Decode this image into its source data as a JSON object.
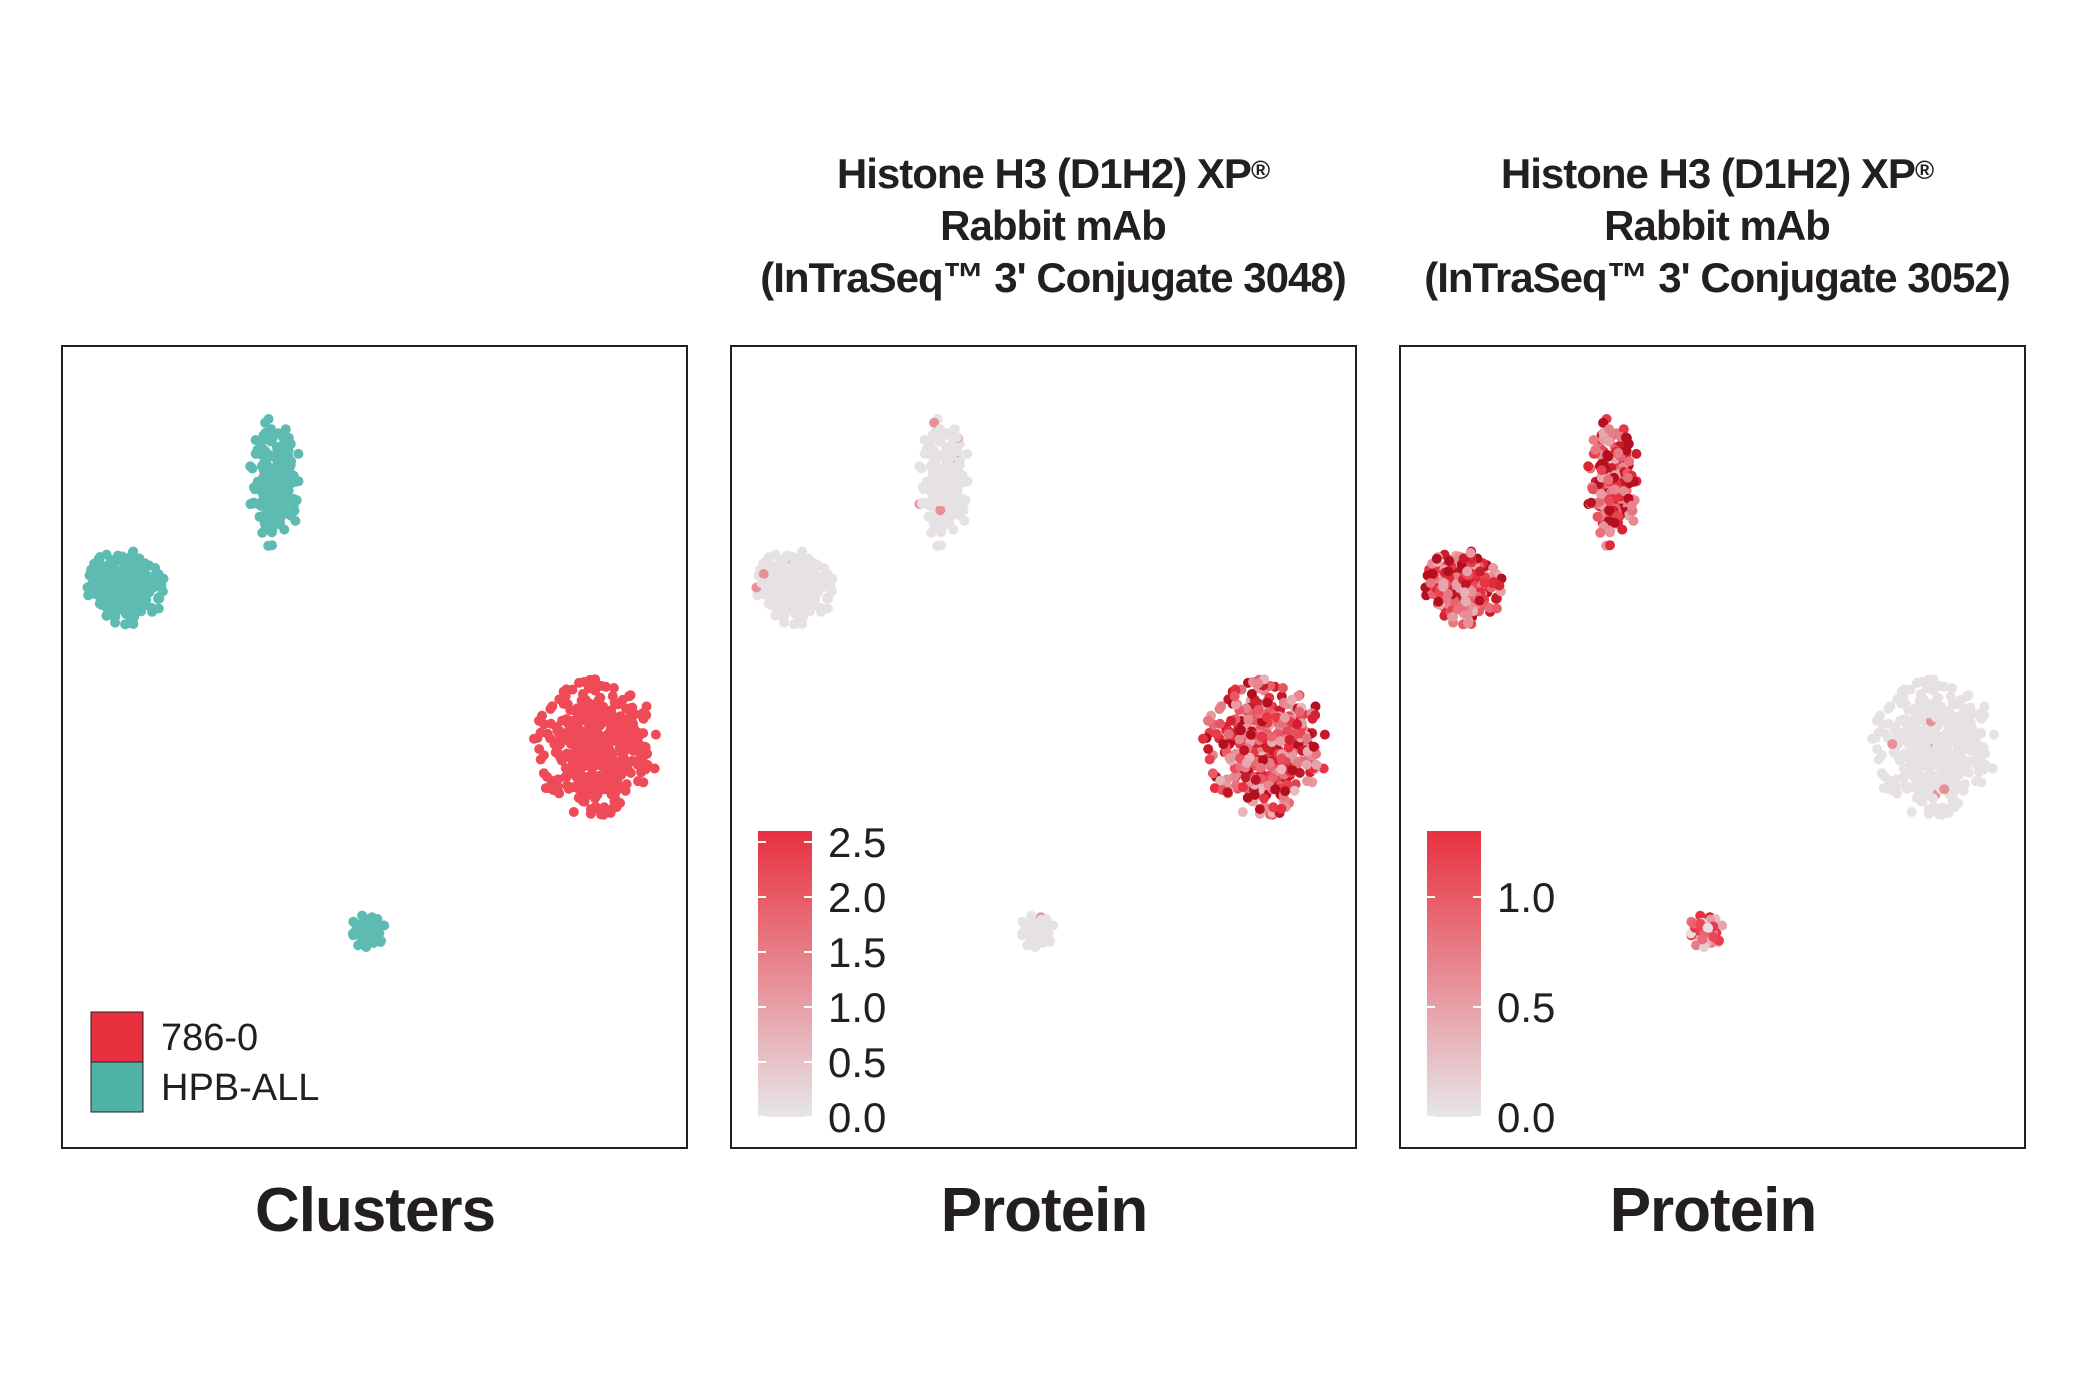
{
  "chart_data": [
    {
      "type": "scatter",
      "subtitle": "",
      "xlabel": "Clusters",
      "legend": {
        "placement": "bottom-left",
        "entries": [
          {
            "label": "786-0",
            "color": "#e8303f"
          },
          {
            "label": "HPB-ALL",
            "color": "#4fb3a6"
          }
        ]
      },
      "groups": [
        {
          "name": "786-0",
          "color": "#ef4a57",
          "cx": 0.855,
          "cy": 0.5,
          "spread_x": 0.095,
          "spread_y": 0.085,
          "n": 420
        },
        {
          "name": "HPB-ALL",
          "color": "#5dbbb1",
          "cx": 0.34,
          "cy": 0.17,
          "spread_x": 0.04,
          "spread_y": 0.08,
          "n": 190
        },
        {
          "name": "HPB-ALL",
          "color": "#5dbbb1",
          "cx": 0.1,
          "cy": 0.3,
          "spread_x": 0.065,
          "spread_y": 0.045,
          "n": 230
        },
        {
          "name": "HPB-ALL",
          "color": "#5dbbb1",
          "cx": 0.49,
          "cy": 0.73,
          "spread_x": 0.028,
          "spread_y": 0.022,
          "n": 60
        }
      ]
    },
    {
      "type": "scatter",
      "title_lines": [
        "Histone H3 (D1H2) XP",
        "Rabbit mAb",
        "(InTraSeq™ 3' Conjugate 3048)"
      ],
      "title_reg": "®",
      "xlabel": "Protein",
      "colorbar": {
        "ticks": [
          "2.5",
          "2.0",
          "1.5",
          "1.0",
          "0.5",
          "0.0"
        ],
        "min": 0.0,
        "max": 2.6,
        "low_color": "#e6e6e8",
        "high_color": "#e8303f",
        "placement": "bottom-left"
      },
      "groups": [
        {
          "cluster": "786-0",
          "cx": 0.855,
          "cy": 0.5,
          "spread_x": 0.095,
          "spread_y": 0.085,
          "n": 420,
          "mean_expression": 1.7
        },
        {
          "cluster": "HPB-ALL",
          "cx": 0.34,
          "cy": 0.17,
          "spread_x": 0.04,
          "spread_y": 0.08,
          "n": 190,
          "mean_expression": 0.1
        },
        {
          "cluster": "HPB-ALL",
          "cx": 0.1,
          "cy": 0.3,
          "spread_x": 0.065,
          "spread_y": 0.045,
          "n": 230,
          "mean_expression": 0.1
        },
        {
          "cluster": "HPB-ALL",
          "cx": 0.49,
          "cy": 0.73,
          "spread_x": 0.028,
          "spread_y": 0.022,
          "n": 60,
          "mean_expression": 0.05
        }
      ]
    },
    {
      "type": "scatter",
      "title_lines": [
        "Histone H3 (D1H2) XP",
        "Rabbit mAb",
        "(InTraSeq™ 3' Conjugate 3052)"
      ],
      "title_reg": "®",
      "xlabel": "Protein",
      "colorbar": {
        "ticks": [
          "1.0",
          "0.5",
          "0.0"
        ],
        "min": 0.0,
        "max": 1.3,
        "low_color": "#e6e6e8",
        "high_color": "#e8303f",
        "placement": "bottom-left"
      },
      "groups": [
        {
          "cluster": "786-0",
          "cx": 0.855,
          "cy": 0.5,
          "spread_x": 0.095,
          "spread_y": 0.085,
          "n": 420,
          "mean_expression": 0.02
        },
        {
          "cluster": "HPB-ALL",
          "cx": 0.34,
          "cy": 0.17,
          "spread_x": 0.04,
          "spread_y": 0.08,
          "n": 190,
          "mean_expression": 0.95
        },
        {
          "cluster": "HPB-ALL",
          "cx": 0.1,
          "cy": 0.3,
          "spread_x": 0.065,
          "spread_y": 0.045,
          "n": 230,
          "mean_expression": 0.9
        },
        {
          "cluster": "HPB-ALL",
          "cx": 0.49,
          "cy": 0.73,
          "spread_x": 0.028,
          "spread_y": 0.022,
          "n": 60,
          "mean_expression": 0.6
        }
      ]
    }
  ]
}
